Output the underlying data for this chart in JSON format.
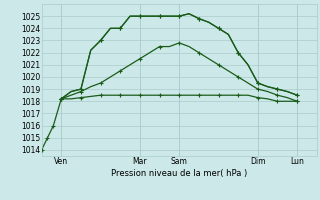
{
  "background_color": "#cce8e8",
  "grid_color": "#aacccc",
  "line_color": "#1a5c1a",
  "xlabel": "Pression niveau de la mer( hPa )",
  "ylim": [
    1013.5,
    1026.0
  ],
  "xlim": [
    0,
    14
  ],
  "xtick_positions": [
    1,
    5,
    7,
    11,
    13
  ],
  "xtick_labels": [
    "Ven",
    "Mar",
    "Sam",
    "Dim",
    "Lun"
  ],
  "vline_positions": [
    1,
    5,
    7,
    11,
    13
  ],
  "line1_x": [
    1,
    1.5,
    2,
    2.5,
    3,
    3.5,
    4,
    4.5,
    5,
    5.5,
    6,
    6.5,
    7,
    7.5,
    8,
    8.5,
    9,
    9.5,
    10,
    10.5,
    11,
    11.5,
    12,
    12.5,
    13
  ],
  "line1_y": [
    1018.2,
    1018.8,
    1019.0,
    1022.2,
    1023.0,
    1024.0,
    1024.0,
    1025.0,
    1025.0,
    1025.0,
    1025.0,
    1025.0,
    1025.0,
    1025.2,
    1024.8,
    1024.5,
    1024.0,
    1023.5,
    1022.0,
    1021.0,
    1019.5,
    1019.2,
    1019.0,
    1018.8,
    1018.5
  ],
  "line2_x": [
    1,
    1.5,
    2,
    2.5,
    3,
    3.5,
    4,
    4.5,
    5,
    5.5,
    6,
    6.5,
    7,
    7.5,
    8,
    8.5,
    9,
    9.5,
    10,
    10.5,
    11,
    11.5,
    12,
    12.5,
    13
  ],
  "line2_y": [
    1018.2,
    1018.5,
    1018.8,
    1019.2,
    1019.5,
    1020.0,
    1020.5,
    1021.0,
    1021.5,
    1022.0,
    1022.5,
    1022.5,
    1022.8,
    1022.5,
    1022.0,
    1021.5,
    1021.0,
    1020.5,
    1020.0,
    1019.5,
    1019.0,
    1018.8,
    1018.5,
    1018.3,
    1018.0
  ],
  "line3_x": [
    1,
    1.5,
    2,
    2.5,
    3,
    3.5,
    4,
    4.5,
    5,
    5.5,
    6,
    6.5,
    7,
    7.5,
    8,
    8.5,
    9,
    9.5,
    10,
    10.5,
    11,
    11.5,
    12,
    12.5,
    13
  ],
  "line3_y": [
    1018.2,
    1018.2,
    1018.3,
    1018.4,
    1018.5,
    1018.5,
    1018.5,
    1018.5,
    1018.5,
    1018.5,
    1018.5,
    1018.5,
    1018.5,
    1018.5,
    1018.5,
    1018.5,
    1018.5,
    1018.5,
    1018.5,
    1018.5,
    1018.3,
    1018.2,
    1018.0,
    1018.0,
    1018.0
  ],
  "line4_x": [
    0,
    0.3,
    0.6,
    1.0,
    1.5,
    2.0,
    2.5,
    3.0,
    3.5,
    4.0,
    4.5,
    5.0,
    5.5,
    6.0,
    6.5,
    7.0,
    7.5,
    8.0,
    8.5,
    9.0,
    9.5,
    10.0,
    10.5,
    11.0,
    11.5,
    12.0,
    12.5,
    13.0
  ],
  "line4_y": [
    1014.0,
    1015.0,
    1016.0,
    1018.2,
    1018.8,
    1019.0,
    1022.2,
    1023.0,
    1024.0,
    1024.0,
    1025.0,
    1025.0,
    1025.0,
    1025.0,
    1025.0,
    1025.0,
    1025.2,
    1024.8,
    1024.5,
    1024.0,
    1023.5,
    1022.0,
    1021.0,
    1019.5,
    1019.2,
    1019.0,
    1018.8,
    1018.5
  ],
  "markers1_x": [
    1,
    2,
    3,
    4,
    5,
    6,
    7,
    8,
    9,
    10,
    11,
    12,
    13
  ],
  "markers1_y": [
    1018.2,
    1019.0,
    1023.0,
    1024.0,
    1025.0,
    1025.0,
    1025.0,
    1024.8,
    1024.0,
    1022.0,
    1019.5,
    1019.0,
    1018.5
  ],
  "markers2_x": [
    1,
    2,
    3,
    4,
    5,
    6,
    7,
    8,
    9,
    10,
    11,
    12,
    13
  ],
  "markers2_y": [
    1018.2,
    1018.8,
    1019.5,
    1020.5,
    1021.5,
    1022.5,
    1022.8,
    1022.0,
    1021.0,
    1020.0,
    1019.0,
    1018.5,
    1018.0
  ],
  "markers3_x": [
    1,
    2,
    3,
    4,
    5,
    6,
    7,
    8,
    9,
    10,
    11,
    12,
    13
  ],
  "markers3_y": [
    1018.2,
    1018.3,
    1018.5,
    1018.5,
    1018.5,
    1018.5,
    1018.5,
    1018.5,
    1018.5,
    1018.5,
    1018.3,
    1018.0,
    1018.0
  ],
  "markers4_x": [
    0,
    0.3,
    0.6,
    1.0,
    2.0,
    3.0,
    4.0,
    5.0,
    6.0,
    7.0,
    8.0,
    9.0,
    10.0,
    11.0,
    12.0,
    13.0
  ],
  "markers4_y": [
    1014.0,
    1015.0,
    1016.0,
    1018.2,
    1019.0,
    1023.0,
    1024.0,
    1025.0,
    1025.0,
    1025.0,
    1024.8,
    1024.0,
    1022.0,
    1019.5,
    1019.0,
    1018.5
  ]
}
